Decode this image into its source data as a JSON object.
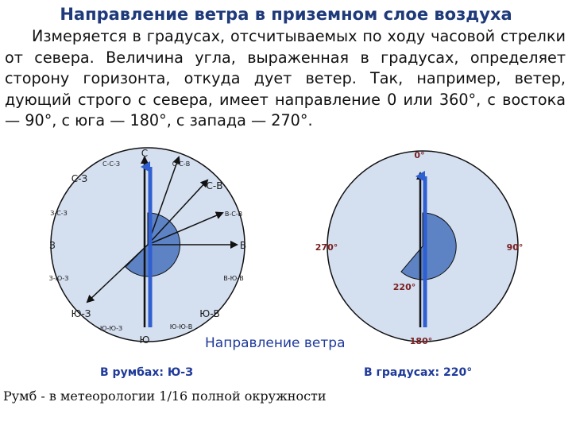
{
  "title": "Направление ветра в приземном слое воздуха",
  "paragraph": "Измеряется в градусах, отсчитываемых по ходу часовой стрелки от севера. Величина угла, выраженная в градусах, определяет сторону горизонта, откуда дует ветер. Так, например, ветер, дующий строго с севера, имеет направление 0 или 360°, с востока — 90°, с юга — 180°, с запада — 270°.",
  "left_diagram": {
    "labels": {
      "n": "С",
      "nnw": "С-С-З",
      "nne": "С-С-В",
      "nw": "С-З",
      "ne": "С-В",
      "wnw": "З-С-З",
      "ene": "В-С-В",
      "w": "З",
      "e": "В",
      "wsw": "З-Ю-З",
      "ese": "В-Ю-В",
      "sw": "Ю-З",
      "se": "Ю-В",
      "ssw": "Ю-Ю-З",
      "sse": "Ю-Ю-В",
      "s": "Ю"
    }
  },
  "right_diagram": {
    "labels": {
      "n": "0°",
      "e": "90°",
      "s": "180°",
      "w": "270°",
      "wind": "220°"
    }
  },
  "caption": "Направление ветра",
  "rumb_caption": "В румбах: Ю-З",
  "degree_caption": "В градусах: 220°",
  "note": "Румб - в метеорологии 1/16 полной окружности",
  "colors": {
    "disk": "#d4dff0",
    "sector": "#5d83c4",
    "arrow": "#2f5fd0",
    "title": "#1f3a7a"
  }
}
